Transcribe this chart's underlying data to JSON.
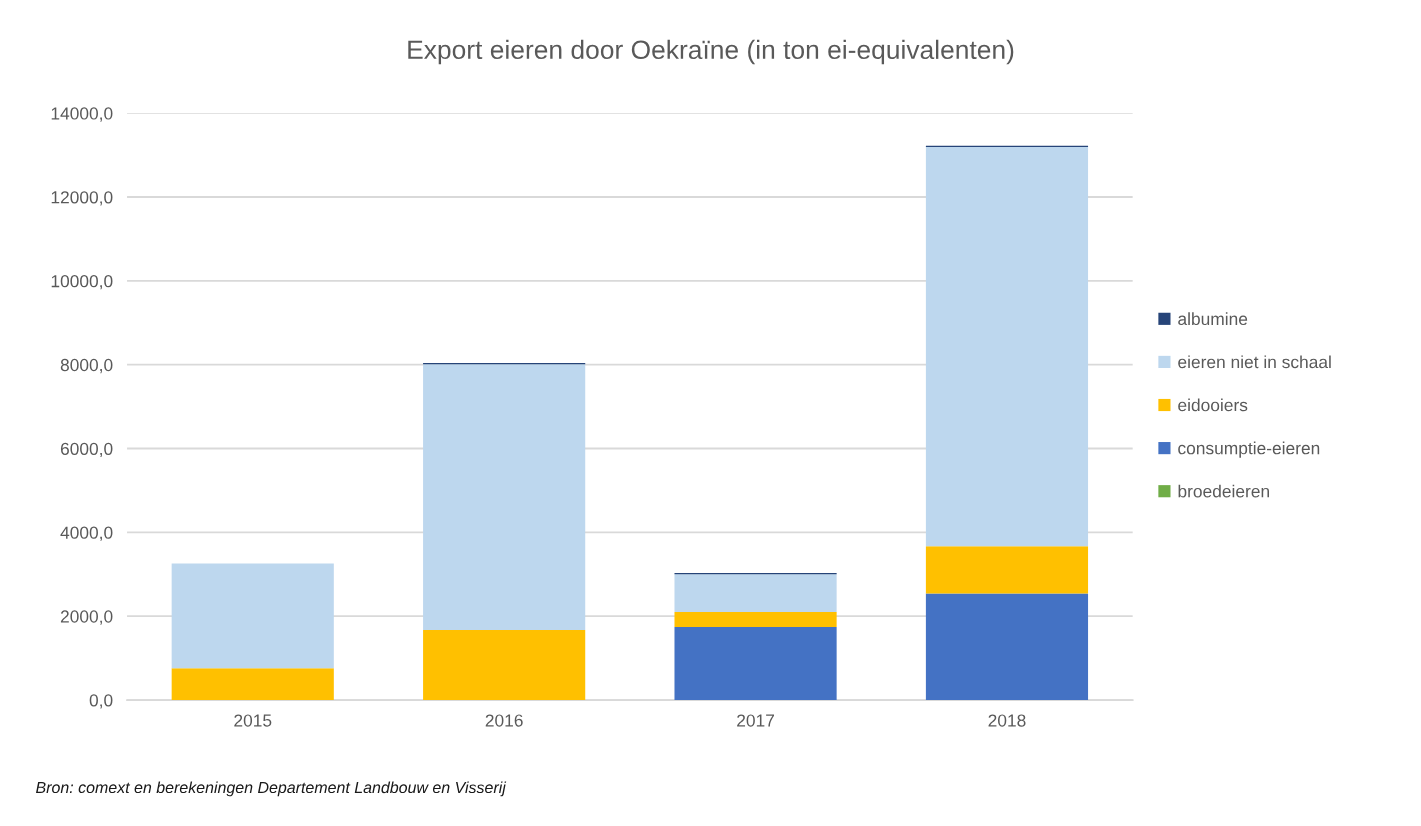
{
  "chart_data": {
    "type": "bar",
    "title": "Export eieren door Oekraïne (in ton ei-equivalenten)",
    "categories": [
      "2015",
      "2016",
      "2017",
      "2018"
    ],
    "stacked": true,
    "series": [
      {
        "name": "broedeieren",
        "color": "#70ad47",
        "values": [
          0,
          0,
          0,
          0
        ]
      },
      {
        "name": "consumptie-eieren",
        "color": "#4472c4",
        "values": [
          0,
          0,
          1740,
          2540
        ]
      },
      {
        "name": "eidooiers",
        "color": "#ffc000",
        "values": [
          760,
          1670,
          360,
          1130
        ]
      },
      {
        "name": "eieren niet in schaal",
        "color": "#bdd7ee",
        "values": [
          2500,
          6340,
          900,
          9520
        ]
      },
      {
        "name": "albumine",
        "color": "#264478",
        "values": [
          0,
          30,
          30,
          30
        ]
      }
    ],
    "ylim": [
      0,
      14000
    ],
    "yticks": [
      {
        "value": 0,
        "label": "0,0"
      },
      {
        "value": 2000,
        "label": "2000,0"
      },
      {
        "value": 4000,
        "label": "4000,0"
      },
      {
        "value": 6000,
        "label": "6000,0"
      },
      {
        "value": 8000,
        "label": "8000,0"
      },
      {
        "value": 10000,
        "label": "10000,0"
      },
      {
        "value": 12000,
        "label": "12000,0"
      },
      {
        "value": 14000,
        "label": "14000,0"
      }
    ],
    "grid": "y",
    "legend": "right",
    "annotations": [
      "Bron: comext en berekeningen Departement Landbouw en Visserij"
    ]
  }
}
